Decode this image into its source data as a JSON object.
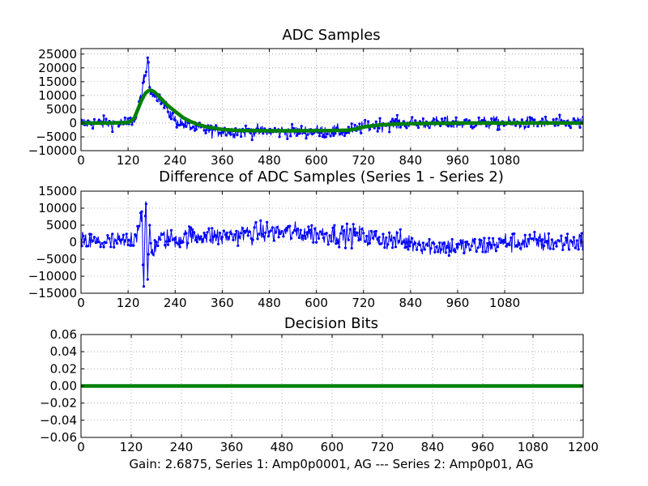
{
  "footer": "Gain: 2.6875, Series 1: Amp0p0001, AG --- Series 2: Amp0p01, AG",
  "colors": {
    "series1": "#0000ff",
    "series2": "#008000"
  },
  "chart_data": [
    {
      "type": "line",
      "title": "ADC Samples",
      "xlim": [
        0,
        1280
      ],
      "ylim": [
        -10000,
        27000
      ],
      "xticks": [
        0,
        120,
        240,
        360,
        480,
        600,
        720,
        840,
        960,
        1080
      ],
      "xticklabels": [
        "0",
        "120",
        "240",
        "360",
        "480",
        "600",
        "720",
        "840",
        "960",
        "1080"
      ],
      "yticks": [
        -10000,
        -5000,
        0,
        5000,
        10000,
        15000,
        20000,
        25000
      ],
      "yticklabels": [
        "−10000",
        "−5000",
        "0",
        "5000",
        "10000",
        "15000",
        "20000",
        "25000"
      ],
      "grid": true,
      "series": [
        {
          "style": "blue noisy samples with dot markers",
          "x": [
            0,
            60,
            120,
            140,
            150,
            160,
            165,
            170,
            175,
            180,
            190,
            200,
            220,
            240,
            280,
            320,
            360,
            400,
            480,
            600,
            680,
            720,
            760,
            840,
            960,
            1080,
            1280
          ],
          "y": [
            0,
            0,
            0,
            2000,
            8000,
            15000,
            17000,
            24000,
            13000,
            12000,
            11000,
            9000,
            5000,
            1000,
            -1500,
            -2500,
            -3000,
            -3000,
            -3000,
            -3000,
            -3000,
            -1500,
            -500,
            0,
            0,
            0,
            0
          ]
        },
        {
          "style": "thick green smoothed curve",
          "x": [
            0,
            60,
            120,
            135,
            145,
            155,
            165,
            175,
            185,
            195,
            205,
            220,
            240,
            260,
            280,
            300,
            320,
            360,
            400,
            480,
            560,
            640,
            680,
            700,
            720,
            760,
            800,
            840,
            900,
            960,
            1080,
            1280
          ],
          "y": [
            0,
            0,
            200,
            1500,
            5000,
            8500,
            11000,
            12000,
            11500,
            10200,
            8700,
            6500,
            4200,
            2000,
            500,
            -600,
            -1400,
            -2300,
            -2700,
            -2800,
            -2800,
            -2700,
            -2600,
            -2200,
            -1400,
            -700,
            -400,
            -200,
            -100,
            0,
            0,
            0
          ]
        }
      ]
    },
    {
      "type": "line",
      "title": "Difference of ADC Samples (Series 1 - Series 2)",
      "xlim": [
        0,
        1280
      ],
      "ylim": [
        -15000,
        15000
      ],
      "xticks": [
        0,
        120,
        240,
        360,
        480,
        600,
        720,
        840,
        960,
        1080
      ],
      "xticklabels": [
        "0",
        "120",
        "240",
        "360",
        "480",
        "600",
        "720",
        "840",
        "960",
        "1080"
      ],
      "yticks": [
        -15000,
        -10000,
        -5000,
        0,
        5000,
        10000,
        15000
      ],
      "yticklabels": [
        "−15000",
        "−10000",
        "−5000",
        "0",
        "5000",
        "10000",
        "15000"
      ],
      "grid": true,
      "series": [
        {
          "style": "blue noisy samples with dot markers",
          "x": [
            0,
            60,
            120,
            140,
            155,
            160,
            165,
            170,
            175,
            180,
            200,
            240,
            300,
            360,
            420,
            480,
            600,
            700,
            760,
            840,
            900,
            960,
            1040,
            1080,
            1280
          ],
          "y": [
            0,
            0,
            0,
            2000,
            9000,
            -13000,
            12000,
            -11000,
            5000,
            -3000,
            1000,
            1000,
            2000,
            1500,
            2500,
            3000,
            2500,
            2000,
            1000,
            0,
            -1000,
            -1500,
            -1000,
            0,
            0
          ]
        }
      ]
    },
    {
      "type": "line",
      "title": "Decision Bits",
      "xlim": [
        0,
        1200
      ],
      "ylim": [
        -0.06,
        0.06
      ],
      "xticks": [
        0,
        120,
        240,
        360,
        480,
        600,
        720,
        840,
        960,
        1080,
        1200
      ],
      "xticklabels": [
        "0",
        "120",
        "240",
        "360",
        "480",
        "600",
        "720",
        "840",
        "960",
        "1080",
        "1200"
      ],
      "yticks": [
        -0.06,
        -0.04,
        -0.02,
        0.0,
        0.02,
        0.04,
        0.06
      ],
      "yticklabels": [
        "−0.06",
        "−0.04",
        "−0.02",
        "0.00",
        "0.02",
        "0.04",
        "0.06"
      ],
      "grid": true,
      "series": [
        {
          "style": "thick green constant line",
          "x": [
            0,
            1200
          ],
          "y": [
            0,
            0
          ]
        }
      ]
    }
  ]
}
